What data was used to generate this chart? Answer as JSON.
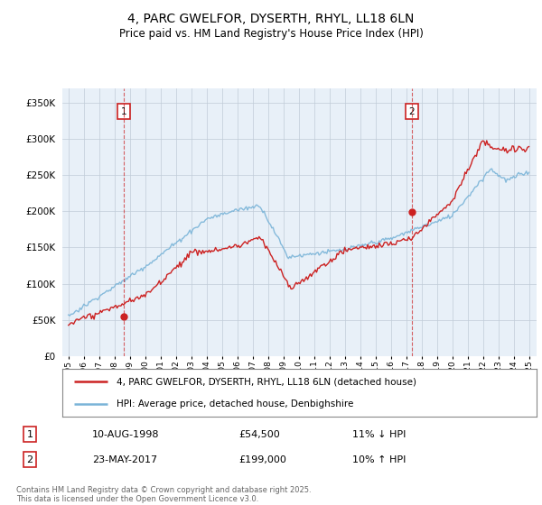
{
  "title": "4, PARC GWELFOR, DYSERTH, RHYL, LL18 6LN",
  "subtitle": "Price paid vs. HM Land Registry's House Price Index (HPI)",
  "legend_line1": "4, PARC GWELFOR, DYSERTH, RHYL, LL18 6LN (detached house)",
  "legend_line2": "HPI: Average price, detached house, Denbighshire",
  "transaction1_date": "10-AUG-1998",
  "transaction1_price": "£54,500",
  "transaction1_hpi": "11% ↓ HPI",
  "transaction2_date": "23-MAY-2017",
  "transaction2_price": "£199,000",
  "transaction2_hpi": "10% ↑ HPI",
  "footer": "Contains HM Land Registry data © Crown copyright and database right 2025.\nThis data is licensed under the Open Government Licence v3.0.",
  "ylim": [
    0,
    370000
  ],
  "yticks": [
    0,
    50000,
    100000,
    150000,
    200000,
    250000,
    300000,
    350000
  ],
  "hpi_color": "#7ab4d8",
  "price_color": "#cc2222",
  "vline_color": "#cc2222",
  "chart_bg": "#e8f0f8",
  "background_color": "#ffffff",
  "grid_color": "#c0ccd8",
  "transaction1_year": 1998.62,
  "transaction2_year": 2017.38,
  "transaction1_price_val": 54500,
  "transaction2_price_val": 199000
}
